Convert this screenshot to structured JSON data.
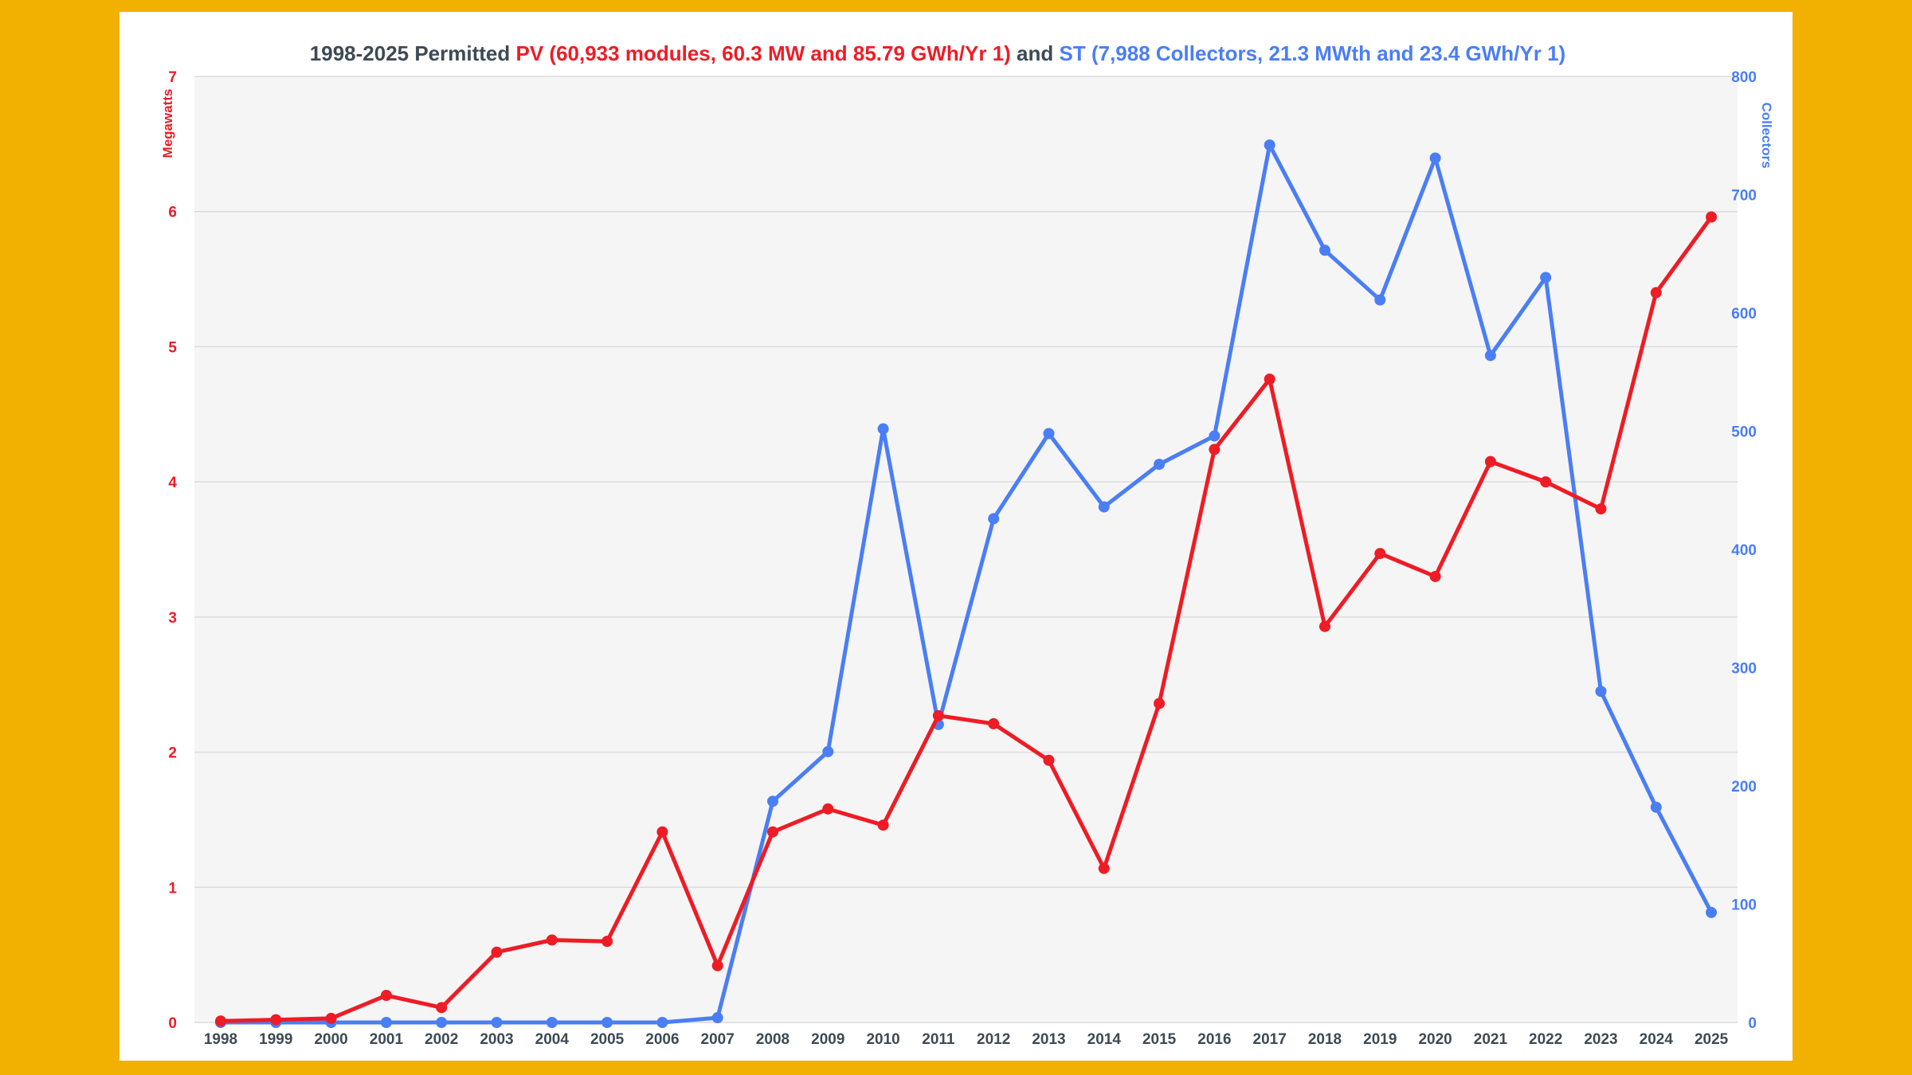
{
  "chart_data": {
    "type": "line",
    "title": {
      "lead": "1998-2025 Permitted ",
      "pv": "PV (60,933 modules, 60.3 MW and 85.79 GWh/Yr 1)",
      "mid": " and ",
      "st": "ST (7,988 Collectors, 21.3 MWth and 23.4 GWh/Yr 1)"
    },
    "x": [
      "1998",
      "1999",
      "2000",
      "2001",
      "2002",
      "2003",
      "2004",
      "2005",
      "2006",
      "2007",
      "2008",
      "2009",
      "2010",
      "2011",
      "2012",
      "2013",
      "2014",
      "2015",
      "2016",
      "2017",
      "2018",
      "2019",
      "2020",
      "2021",
      "2022",
      "2023",
      "2024",
      "2025"
    ],
    "y_left": {
      "label": "Megawatts",
      "range": [
        0,
        7
      ],
      "ticks": [
        0,
        1,
        2,
        3,
        4,
        5,
        6,
        7
      ]
    },
    "y_right": {
      "label": "Collectors",
      "range": [
        0,
        800
      ],
      "ticks": [
        0,
        100,
        200,
        300,
        400,
        500,
        600,
        700,
        800
      ]
    },
    "series": [
      {
        "axis": "left",
        "color": "#ee1c25",
        "values": [
          0.01,
          0.02,
          0.03,
          0.2,
          0.11,
          0.52,
          0.61,
          0.6,
          1.41,
          0.42,
          1.41,
          1.58,
          1.46,
          2.27,
          2.21,
          1.94,
          1.14,
          2.36,
          4.24,
          4.76,
          2.93,
          3.47,
          3.3,
          4.15,
          4.0,
          3.8,
          5.4,
          5.96
        ]
      },
      {
        "axis": "right",
        "color": "#4a7ef5",
        "values": [
          0,
          0,
          0,
          0,
          0,
          0,
          0,
          0,
          0,
          4,
          187,
          229,
          502,
          252,
          426,
          498,
          436,
          472,
          496,
          742,
          653,
          611,
          731,
          564,
          630,
          280,
          182,
          93
        ]
      }
    ],
    "grid": true,
    "legend": "none"
  },
  "colors": {
    "pv": "#ee1c25",
    "st": "#4a7ef5",
    "title_text": "#3d4a55",
    "plot_bg": "#f5f5f5",
    "frame": "#f2b100"
  }
}
